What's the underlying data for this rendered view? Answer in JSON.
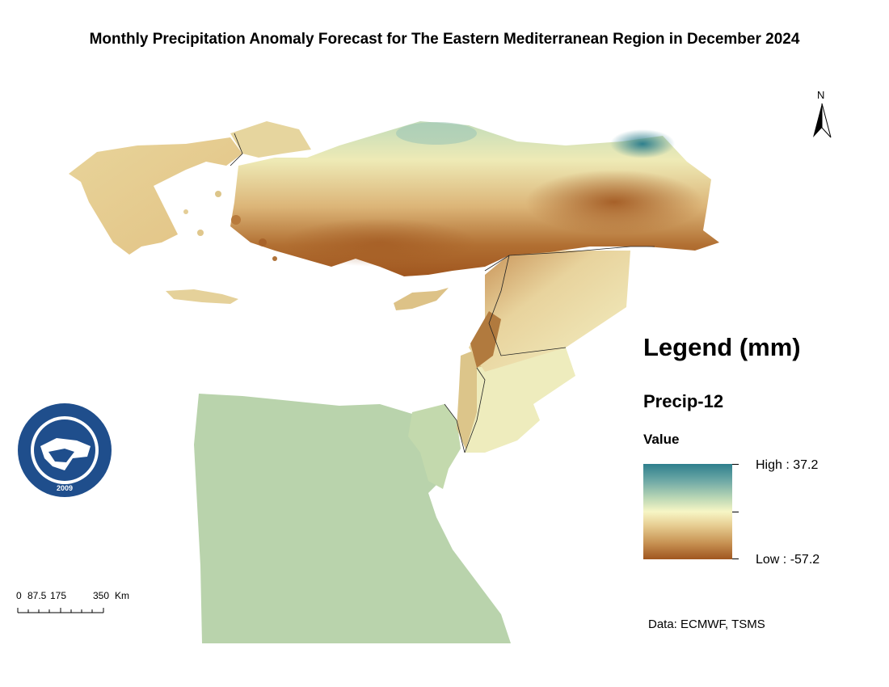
{
  "title": "Monthly Precipitation Anomaly Forecast for The Eastern Mediterranean Region in December 2024",
  "north_arrow": {
    "label": "N",
    "icon": "north-arrow-icon"
  },
  "legend": {
    "title": "Legend (mm)",
    "layer": "Precip-12",
    "field": "Value",
    "high_label": "High : 37.2",
    "low_label": "Low : -57.2",
    "high_value": 37.2,
    "low_value": -57.2,
    "colors": {
      "high": "#2e7f8d",
      "mid": "#f7f6c5",
      "low": "#a0561f",
      "egypt": "#b9d3ac"
    }
  },
  "scale_bar": {
    "labels": [
      "0",
      "87.5",
      "175",
      "350",
      "Km"
    ]
  },
  "source": "Data: ECMWF, TSMS",
  "logo": {
    "text_top": "EASTERN MEDITERRANEAN CLIMATE CENTRE",
    "year": "2009"
  }
}
